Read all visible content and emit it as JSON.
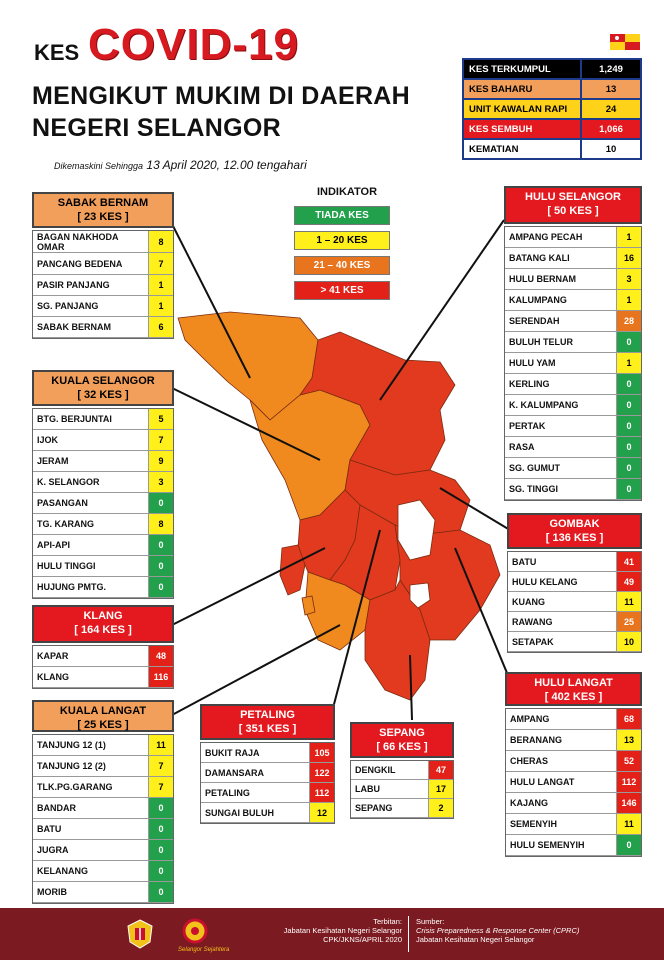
{
  "colors": {
    "green": "#22a04b",
    "yellow": "#ffef1a",
    "orange": "#e8741e",
    "red": "#e32119",
    "header_orange": "#f29f5c",
    "header_red": "#e3191f",
    "maroon": "#7b1a20",
    "navy": "#1e3a8a"
  },
  "title": {
    "kes": "KES",
    "covid": "COVID-19",
    "line1": "MENGIKUT MUKIM DI DAERAH",
    "line2": "NEGERI SELANGOR",
    "updated_prefix": "Dikemaskini Sehingga",
    "updated_date": "13 April 2020, 12.00 tengahari"
  },
  "summary": [
    {
      "label": "KES TERKUMPUL",
      "value": "1,249",
      "color": "#000000",
      "text": "#ffffff"
    },
    {
      "label": "KES BAHARU",
      "value": "13",
      "color": "#f29f5c",
      "text": "#000000"
    },
    {
      "label": "UNIT KAWALAN RAPI",
      "value": "24",
      "color": "#ffd21a",
      "text": "#000000"
    },
    {
      "label": "KES SEMBUH",
      "value": "1,066",
      "color": "#e3191f",
      "text": "#ffffff"
    },
    {
      "label": "KEMATIAN",
      "value": "10",
      "color": "#ffffff",
      "text": "#000000"
    }
  ],
  "indicator": {
    "title": "INDIKATOR",
    "items": [
      {
        "label": "TIADA KES",
        "color": "green"
      },
      {
        "label": "1 – 20 KES",
        "color": "yellow"
      },
      {
        "label": "21 – 40 KES",
        "color": "orange"
      },
      {
        "label": "> 41 KES",
        "color": "red"
      }
    ]
  },
  "districts": {
    "sabak_bernam": {
      "name": "SABAK BERNAM",
      "total": "[ 23 KES ]",
      "header": "orange",
      "mukim": [
        {
          "name": "BAGAN NAKHODA OMAR",
          "value": "8",
          "color": "yellow"
        },
        {
          "name": "PANCANG BEDENA",
          "value": "7",
          "color": "yellow"
        },
        {
          "name": "PASIR PANJANG",
          "value": "1",
          "color": "yellow"
        },
        {
          "name": "SG. PANJANG",
          "value": "1",
          "color": "yellow"
        },
        {
          "name": "SABAK BERNAM",
          "value": "6",
          "color": "yellow"
        }
      ]
    },
    "kuala_selangor": {
      "name": "KUALA SELANGOR",
      "total": "[ 32 KES ]",
      "header": "orange",
      "mukim": [
        {
          "name": "BTG. BERJUNTAI",
          "value": "5",
          "color": "yellow"
        },
        {
          "name": "IJOK",
          "value": "7",
          "color": "yellow"
        },
        {
          "name": "JERAM",
          "value": "9",
          "color": "yellow"
        },
        {
          "name": "K. SELANGOR",
          "value": "3",
          "color": "yellow"
        },
        {
          "name": "PASANGAN",
          "value": "0",
          "color": "green"
        },
        {
          "name": "TG. KARANG",
          "value": "8",
          "color": "yellow"
        },
        {
          "name": "API-API",
          "value": "0",
          "color": "green"
        },
        {
          "name": "HULU TINGGI",
          "value": "0",
          "color": "green"
        },
        {
          "name": "HUJUNG PMTG.",
          "value": "0",
          "color": "green"
        }
      ]
    },
    "klang": {
      "name": "KLANG",
      "total": "[ 164 KES ]",
      "header": "red",
      "mukim": [
        {
          "name": "KAPAR",
          "value": "48",
          "color": "red"
        },
        {
          "name": "KLANG",
          "value": "116",
          "color": "red"
        }
      ]
    },
    "kuala_langat": {
      "name": "KUALA LANGAT",
      "total": "[ 25 KES ]",
      "header": "orange",
      "mukim": [
        {
          "name": "TANJUNG 12 (1)",
          "value": "11",
          "color": "yellow"
        },
        {
          "name": "TANJUNG 12 (2)",
          "value": "7",
          "color": "yellow"
        },
        {
          "name": "TLK.PG.GARANG",
          "value": "7",
          "color": "yellow"
        },
        {
          "name": "BANDAR",
          "value": "0",
          "color": "green"
        },
        {
          "name": "BATU",
          "value": "0",
          "color": "green"
        },
        {
          "name": "JUGRA",
          "value": "0",
          "color": "green"
        },
        {
          "name": "KELANANG",
          "value": "0",
          "color": "green"
        },
        {
          "name": "MORIB",
          "value": "0",
          "color": "green"
        }
      ]
    },
    "petaling": {
      "name": "PETALING",
      "total": "[ 351 KES ]",
      "header": "red",
      "mukim": [
        {
          "name": "BUKIT RAJA",
          "value": "105",
          "color": "red"
        },
        {
          "name": "DAMANSARA",
          "value": "122",
          "color": "red"
        },
        {
          "name": "PETALING",
          "value": "112",
          "color": "red"
        },
        {
          "name": "SUNGAI BULUH",
          "value": "12",
          "color": "yellow"
        }
      ]
    },
    "sepang": {
      "name": "SEPANG",
      "total": "[ 66 KES ]",
      "header": "red",
      "mukim": [
        {
          "name": "DENGKIL",
          "value": "47",
          "color": "red"
        },
        {
          "name": "LABU",
          "value": "17",
          "color": "yellow"
        },
        {
          "name": "SEPANG",
          "value": "2",
          "color": "yellow"
        }
      ]
    },
    "hulu_selangor": {
      "name": "HULU SELANGOR",
      "total": "[ 50 KES ]",
      "header": "red",
      "mukim": [
        {
          "name": "AMPANG PECAH",
          "value": "1",
          "color": "yellow"
        },
        {
          "name": "BATANG KALI",
          "value": "16",
          "color": "yellow"
        },
        {
          "name": "HULU BERNAM",
          "value": "3",
          "color": "yellow"
        },
        {
          "name": "KALUMPANG",
          "value": "1",
          "color": "yellow"
        },
        {
          "name": "SERENDAH",
          "value": "28",
          "color": "orange"
        },
        {
          "name": "BULUH TELUR",
          "value": "0",
          "color": "green"
        },
        {
          "name": "HULU YAM",
          "value": "1",
          "color": "yellow"
        },
        {
          "name": "KERLING",
          "value": "0",
          "color": "green"
        },
        {
          "name": "K. KALUMPANG",
          "value": "0",
          "color": "green"
        },
        {
          "name": "PERTAK",
          "value": "0",
          "color": "green"
        },
        {
          "name": "RASA",
          "value": "0",
          "color": "green"
        },
        {
          "name": "SG. GUMUT",
          "value": "0",
          "color": "green"
        },
        {
          "name": "SG. TINGGI",
          "value": "0",
          "color": "green"
        }
      ]
    },
    "gombak": {
      "name": "GOMBAK",
      "total": "[ 136 KES ]",
      "header": "red",
      "mukim": [
        {
          "name": "BATU",
          "value": "41",
          "color": "red"
        },
        {
          "name": "HULU KELANG",
          "value": "49",
          "color": "red"
        },
        {
          "name": "KUANG",
          "value": "11",
          "color": "yellow"
        },
        {
          "name": "RAWANG",
          "value": "25",
          "color": "orange"
        },
        {
          "name": "SETAPAK",
          "value": "10",
          "color": "yellow"
        }
      ]
    },
    "hulu_langat": {
      "name": "HULU LANGAT",
      "total": "[ 402 KES ]",
      "header": "red",
      "mukim": [
        {
          "name": "AMPANG",
          "value": "68",
          "color": "red"
        },
        {
          "name": "BERANANG",
          "value": "13",
          "color": "yellow"
        },
        {
          "name": "CHERAS",
          "value": "52",
          "color": "red"
        },
        {
          "name": "HULU LANGAT",
          "value": "112",
          "color": "red"
        },
        {
          "name": "KAJANG",
          "value": "146",
          "color": "red"
        },
        {
          "name": "SEMENYIH",
          "value": "11",
          "color": "yellow"
        },
        {
          "name": "HULU SEMENYIH",
          "value": "0",
          "color": "green"
        }
      ]
    }
  },
  "footer": {
    "terbitan_label": "Terbitan:",
    "terbitan_org": "Jabatan Kesihatan Negeri Selangor",
    "terbitan_code": "CPK/JKNS/APRIL 2020",
    "sumber_label": "Sumber:",
    "sumber_1": "Crisis Preparedness & Response Center (CPRC)",
    "sumber_2": "Jabatan Kesihatan Negeri Selangor",
    "logo_text": "Selangor Sejahtera"
  }
}
